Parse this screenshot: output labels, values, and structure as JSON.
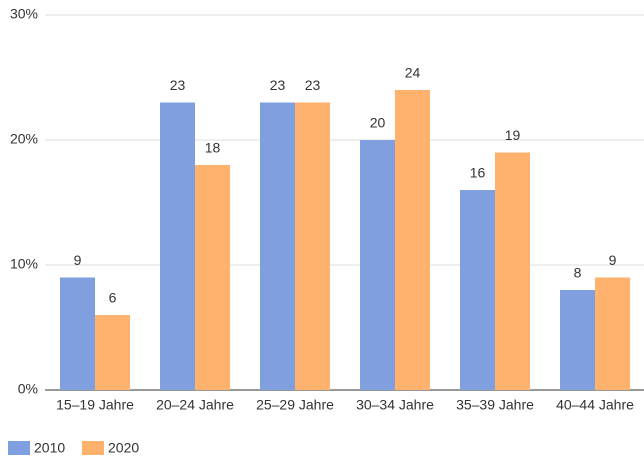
{
  "chart_data": {
    "type": "bar",
    "categories": [
      "15–19 Jahre",
      "20–24 Jahre",
      "25–29 Jahre",
      "30–34 Jahre",
      "35–39 Jahre",
      "40–44 Jahre"
    ],
    "series": [
      {
        "name": "2010",
        "color": "#7f9fdf",
        "values": [
          9,
          23,
          23,
          20,
          16,
          8
        ]
      },
      {
        "name": "2020",
        "color": "#ffb16e",
        "values": [
          6,
          18,
          23,
          24,
          19,
          9
        ]
      }
    ],
    "ylim": [
      0,
      30
    ],
    "yticks": [
      {
        "value": 0,
        "label": "0%"
      },
      {
        "value": 10,
        "label": "10%"
      },
      {
        "value": 20,
        "label": "20%"
      },
      {
        "value": 30,
        "label": "30%"
      }
    ],
    "grid": true,
    "legend": "bottom"
  }
}
